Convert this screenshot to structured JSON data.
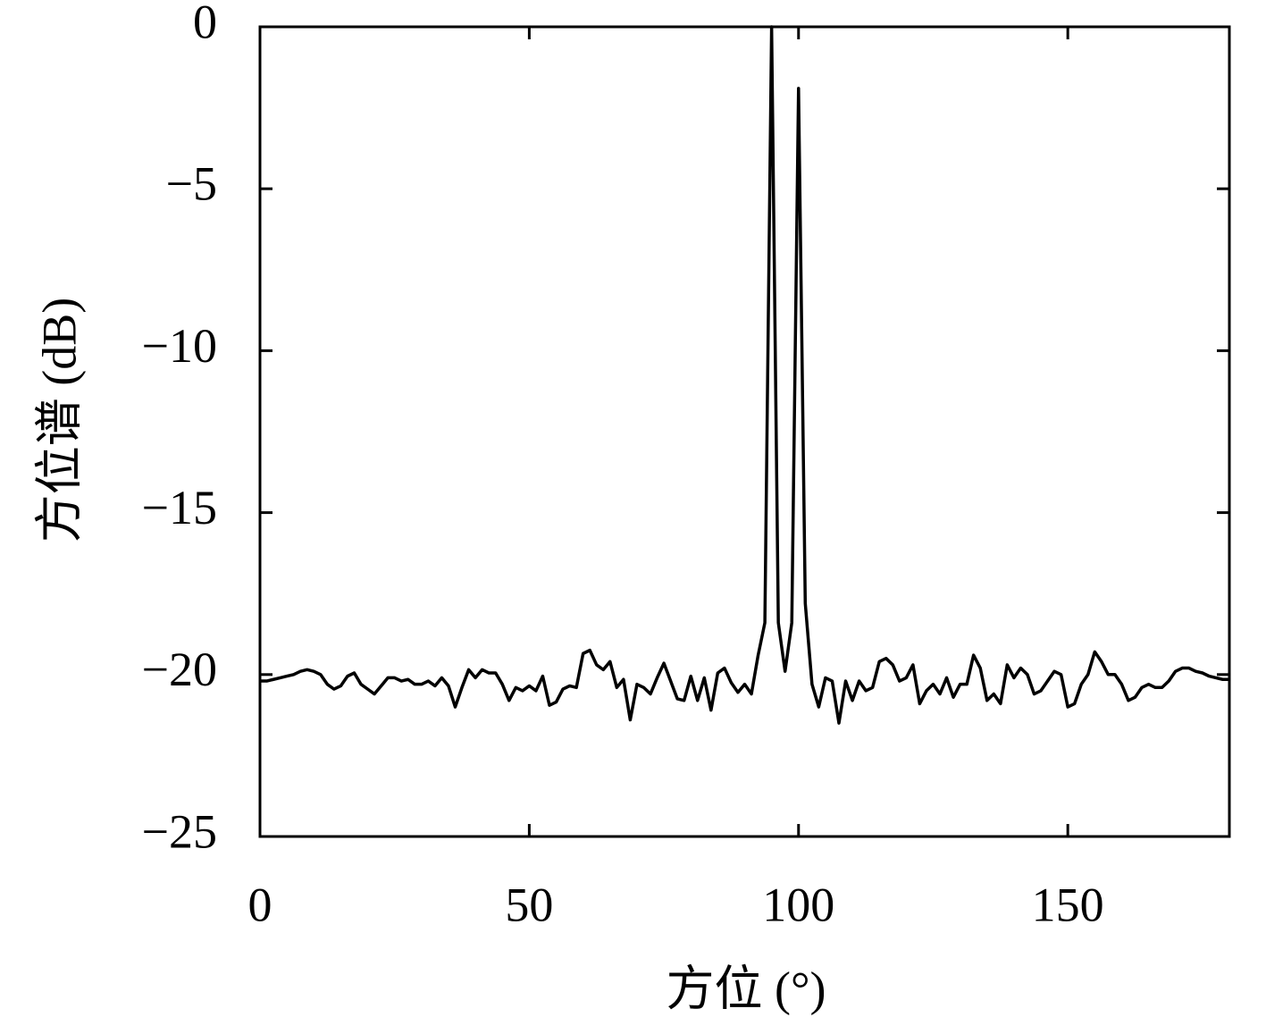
{
  "chart_data": {
    "type": "line",
    "xlabel": "方位 (°)",
    "ylabel": "方位谱 (dB)",
    "xlim": [
      0,
      180
    ],
    "ylim": [
      -25,
      0
    ],
    "xticks": [
      0,
      50,
      100,
      150
    ],
    "yticks": [
      {
        "value": 0,
        "label": "0"
      },
      {
        "value": -5,
        "label": "−5"
      },
      {
        "value": -10,
        "label": "−10"
      },
      {
        "value": -15,
        "label": "−15"
      },
      {
        "value": -20,
        "label": "−20"
      },
      {
        "value": -25,
        "label": "−25"
      }
    ],
    "color": "#000000",
    "x": [
      0,
      1.25,
      2.5,
      3.75,
      5,
      6.25,
      7.5,
      8.75,
      10,
      11.25,
      12.5,
      13.75,
      15,
      16.25,
      17.5,
      18.75,
      20,
      21.25,
      22.5,
      23.75,
      25,
      26.25,
      27.5,
      28.75,
      30,
      31.25,
      32.5,
      33.75,
      35,
      36.25,
      37.5,
      38.75,
      40,
      41.25,
      42.5,
      43.75,
      45,
      46.25,
      47.5,
      48.75,
      50,
      51.25,
      52.5,
      53.75,
      55,
      56.25,
      57.5,
      58.75,
      60,
      61.25,
      62.5,
      63.75,
      65,
      66.25,
      67.5,
      68.75,
      70,
      71.25,
      72.5,
      73.75,
      75,
      76.25,
      77.5,
      78.75,
      80,
      81.25,
      82.5,
      83.75,
      85,
      86.25,
      87.5,
      88.75,
      90,
      91.25,
      92.5,
      93.75,
      95,
      96.25,
      97.5,
      98.75,
      100,
      101.25,
      102.5,
      103.75,
      105,
      106.25,
      107.5,
      108.75,
      110,
      111.25,
      112.5,
      113.75,
      115,
      116.25,
      117.5,
      118.75,
      120,
      121.25,
      122.5,
      123.75,
      125,
      126.25,
      127.5,
      128.75,
      130,
      131.25,
      132.5,
      133.75,
      135,
      136.25,
      137.5,
      138.75,
      140,
      141.25,
      142.5,
      143.75,
      145,
      146.25,
      147.5,
      148.75,
      150,
      151.25,
      152.5,
      153.75,
      155,
      156.25,
      157.5,
      158.75,
      160,
      161.25,
      162.5,
      163.75,
      165,
      166.25,
      167.5,
      168.75,
      170,
      171.25,
      172.5,
      173.75,
      175,
      176.25,
      177.5,
      178.75,
      180
    ],
    "values": [
      -20.2,
      -20.2,
      -20.15,
      -20.1,
      -20.05,
      -20.0,
      -19.9,
      -19.85,
      -19.9,
      -20.0,
      -20.3,
      -20.45,
      -20.35,
      -20.05,
      -19.95,
      -20.3,
      -20.45,
      -20.6,
      -20.35,
      -20.1,
      -20.1,
      -20.2,
      -20.15,
      -20.3,
      -20.3,
      -20.2,
      -20.35,
      -20.1,
      -20.35,
      -21.0,
      -20.4,
      -19.85,
      -20.1,
      -19.85,
      -19.95,
      -19.95,
      -20.3,
      -20.8,
      -20.4,
      -20.5,
      -20.35,
      -20.5,
      -20.05,
      -20.95,
      -20.85,
      -20.45,
      -20.35,
      -20.4,
      -19.35,
      -19.25,
      -19.7,
      -19.85,
      -19.6,
      -20.4,
      -20.15,
      -21.4,
      -20.3,
      -20.4,
      -20.6,
      -20.1,
      -19.65,
      -20.2,
      -20.75,
      -20.8,
      -20.05,
      -20.8,
      -20.1,
      -21.1,
      -19.95,
      -19.8,
      -20.25,
      -20.55,
      -20.3,
      -20.6,
      -19.4,
      -18.4,
      0,
      -18.4,
      -19.9,
      -18.4,
      -1.9,
      -17.8,
      -20.3,
      -21.0,
      -20.1,
      -20.2,
      -21.5,
      -20.2,
      -20.8,
      -20.2,
      -20.5,
      -20.4,
      -19.6,
      -19.5,
      -19.7,
      -20.2,
      -20.1,
      -19.7,
      -20.9,
      -20.5,
      -20.3,
      -20.6,
      -20.1,
      -20.7,
      -20.3,
      -20.3,
      -19.4,
      -19.8,
      -20.8,
      -20.6,
      -20.9,
      -19.7,
      -20.1,
      -19.8,
      -20.0,
      -20.6,
      -20.5,
      -20.2,
      -19.9,
      -20.0,
      -21.0,
      -20.9,
      -20.3,
      -20.0,
      -19.3,
      -19.6,
      -20.0,
      -20.0,
      -20.3,
      -20.8,
      -20.7,
      -20.4,
      -20.3,
      -20.4,
      -20.4,
      -20.2,
      -19.9,
      -19.8,
      -19.8,
      -19.9,
      -19.95,
      -20.05,
      -20.1,
      -20.15,
      -20.15
    ]
  }
}
